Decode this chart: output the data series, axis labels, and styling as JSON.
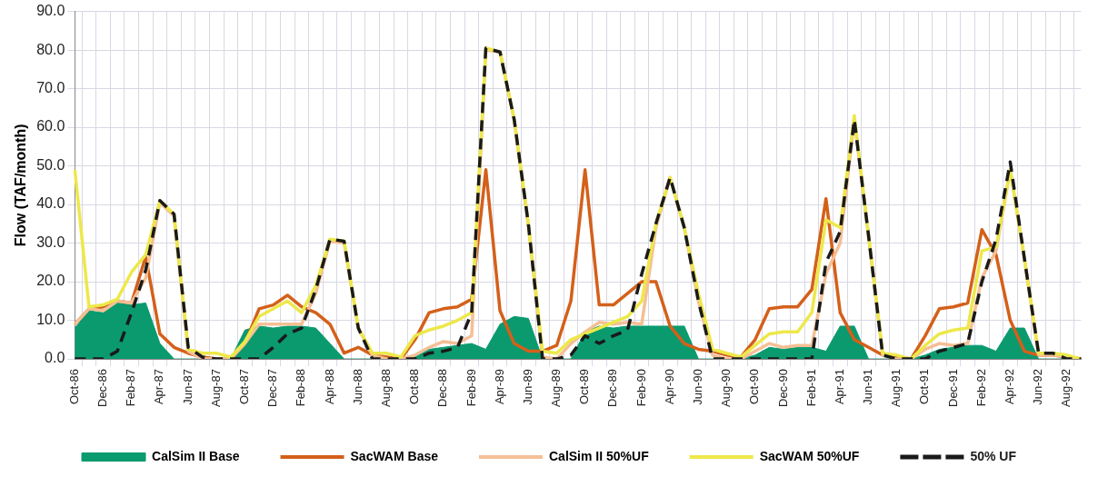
{
  "chart_data": {
    "type": "line",
    "ylabel": "Flow (TAF/month)",
    "categories": [
      "Oct-86",
      null,
      "Dec-86",
      null,
      "Feb-87",
      null,
      "Apr-87",
      null,
      "Jun-87",
      null,
      "Aug-87",
      null,
      "Oct-87",
      null,
      "Dec-87",
      null,
      "Feb-88",
      null,
      "Apr-88",
      null,
      "Jun-88",
      null,
      "Aug-88",
      null,
      "Oct-88",
      null,
      "Dec-88",
      null,
      "Feb-89",
      null,
      "Apr-89",
      null,
      "Jun-89",
      null,
      "Aug-89",
      null,
      "Oct-89",
      null,
      "Dec-89",
      null,
      "Feb-90",
      null,
      "Apr-90",
      null,
      "Jun-90",
      null,
      "Aug-90",
      null,
      "Oct-90",
      null,
      "Dec-90",
      null,
      "Feb-91",
      null,
      "Apr-91",
      null,
      "Jun-91",
      null,
      "Aug-91",
      null,
      "Oct-91",
      null,
      "Dec-91",
      null,
      "Feb-92",
      null,
      "Apr-92",
      null,
      "Jun-92",
      null,
      "Aug-92",
      null
    ],
    "ylim": [
      0,
      90
    ],
    "yticks": [
      {
        "value": 0,
        "label": "0.0"
      },
      {
        "value": 10,
        "label": "10.0"
      },
      {
        "value": 20,
        "label": "20.0"
      },
      {
        "value": 30,
        "label": "30.0"
      },
      {
        "value": 40,
        "label": "40.0"
      },
      {
        "value": 50,
        "label": "50.0"
      },
      {
        "value": 60,
        "label": "60.0"
      },
      {
        "value": 70,
        "label": "70.0"
      },
      {
        "value": 80,
        "label": "80.0"
      },
      {
        "value": 90,
        "label": "90.0"
      }
    ],
    "grid": true,
    "legend": "bottom",
    "marker": "none",
    "series": [
      {
        "name": "CalSim II Base",
        "type": "area",
        "color": "#0a9a6e",
        "values": [
          8,
          12.5,
          12,
          14.5,
          14,
          14.5,
          4,
          0,
          0,
          0,
          0,
          0,
          7.5,
          8.5,
          8,
          8.5,
          8.5,
          8,
          4,
          0,
          0,
          0,
          0,
          0,
          0.5,
          2.5,
          3,
          3.5,
          4,
          2.5,
          9,
          11,
          10.5,
          0,
          0,
          0,
          7,
          8.5,
          8,
          8.5,
          8.5,
          8.5,
          8.5,
          8.5,
          0,
          0,
          0,
          0,
          1,
          3,
          2.5,
          3,
          3,
          2,
          8.5,
          8.5,
          0,
          0,
          0,
          0,
          1,
          2.5,
          3,
          3.5,
          3.5,
          2,
          8,
          8,
          0,
          0,
          0,
          0
        ]
      },
      {
        "name": "SacWAM Base",
        "type": "line",
        "color": "#d4601a",
        "line_style": "solid",
        "values": [
          9,
          13,
          13.5,
          15,
          14.5,
          26.5,
          6.5,
          3,
          1.5,
          0.5,
          0,
          0,
          4,
          13,
          14,
          16.5,
          13.5,
          12,
          9,
          1.5,
          3,
          1,
          0.5,
          0,
          5,
          12,
          13,
          13.5,
          15.5,
          49,
          12.5,
          4,
          2,
          2,
          3.5,
          15,
          49,
          14,
          14,
          17,
          20,
          20,
          8.5,
          4,
          2.5,
          2,
          1,
          0.5,
          5,
          13,
          13.5,
          13.5,
          18,
          41.5,
          12,
          5,
          3,
          1,
          0.5,
          0,
          6,
          13,
          13.5,
          14.5,
          33.5,
          27,
          10,
          2,
          1,
          1,
          0.5,
          0
        ]
      },
      {
        "name": "CalSim II 50%UF",
        "type": "line",
        "color": "#f5bf95",
        "line_style": "solid",
        "values": [
          9,
          13,
          12.5,
          15,
          14.5,
          21,
          40.5,
          37,
          2,
          0,
          0,
          0,
          4,
          9,
          9,
          9,
          9,
          17,
          30.5,
          30,
          8,
          1,
          0,
          0,
          1,
          3,
          4.5,
          4,
          6,
          80,
          79.5,
          62,
          34.5,
          0.5,
          0,
          4,
          7,
          9.5,
          9,
          9.5,
          9,
          34,
          47,
          34,
          15,
          1,
          0,
          0,
          2,
          4,
          3,
          3.5,
          3.5,
          22,
          30,
          62,
          32,
          1,
          0,
          0,
          2.5,
          4,
          3.5,
          4,
          21,
          28,
          49,
          26,
          1,
          1,
          0.5,
          0
        ]
      },
      {
        "name": "SacWAM 50%UF",
        "type": "line",
        "color": "#ede84a",
        "line_style": "solid",
        "values": [
          49,
          13.5,
          14,
          15.5,
          22.5,
          27,
          41,
          37.5,
          2.5,
          1.5,
          1.5,
          0.5,
          4.5,
          11,
          13,
          15,
          12,
          19,
          31,
          30.5,
          8,
          1.5,
          1.5,
          0.5,
          6,
          7.5,
          8.5,
          10,
          12,
          80.5,
          79.5,
          62,
          35,
          2,
          1.5,
          5,
          6.5,
          8,
          9.5,
          11,
          15,
          35,
          47,
          34,
          17,
          2.5,
          1.5,
          0.5,
          3.5,
          6.5,
          7,
          7,
          12,
          36,
          34,
          63,
          32,
          1.5,
          1,
          0,
          3.5,
          6.5,
          7.5,
          8,
          28,
          29,
          49,
          26,
          1.5,
          1.5,
          1,
          0
        ]
      },
      {
        "name": "50% UF",
        "type": "line",
        "color": "#1a1a1a",
        "line_style": "dashed",
        "values": [
          0,
          0,
          0,
          2,
          12,
          23,
          41,
          37.5,
          3,
          0.5,
          0,
          0,
          0,
          0,
          3,
          6.5,
          8,
          18,
          31,
          30.5,
          8,
          0,
          0,
          0,
          0,
          1.5,
          2,
          3,
          12,
          80.5,
          79.5,
          62,
          35,
          0,
          0,
          1,
          6,
          4,
          6,
          7.5,
          22,
          35,
          47,
          34,
          15,
          0,
          0,
          0,
          0,
          0,
          0,
          0,
          0,
          25,
          33,
          62,
          32,
          1,
          0,
          0,
          0,
          2,
          3,
          4,
          20,
          31,
          51,
          26,
          1.5,
          1.5,
          0,
          0
        ]
      }
    ]
  }
}
